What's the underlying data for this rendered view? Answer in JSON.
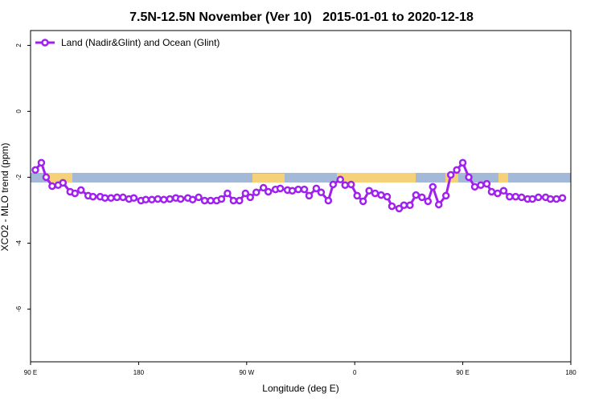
{
  "chart_data": {
    "type": "line",
    "title": "7.5N-12.5N November (Ver 10)   2015-01-01 to 2020-12-18",
    "x_label": "Longitude (deg E)",
    "y_label": "XCO2 - MLO trend (ppm)",
    "xlim": [
      90,
      540
    ],
    "ylim": [
      -7.6,
      2.45
    ],
    "xticks": [
      {
        "value": 90,
        "label": "90 E"
      },
      {
        "value": 180,
        "label": "180"
      },
      {
        "value": 270,
        "label": "90 W"
      },
      {
        "value": 360,
        "label": "0"
      },
      {
        "value": 450,
        "label": "90 E"
      },
      {
        "value": 540,
        "label": "180"
      }
    ],
    "yticks": [
      2,
      0,
      -2,
      -4,
      -6
    ],
    "legend": "top-left",
    "x": [
      94,
      99,
      103,
      108,
      113,
      117,
      123,
      127,
      132,
      138,
      142,
      148,
      152,
      157,
      162,
      167,
      172,
      176,
      182,
      186,
      191,
      196,
      201,
      206,
      211,
      215,
      221,
      225,
      230,
      235,
      240,
      245,
      249,
      254,
      259,
      264,
      269,
      273,
      278,
      284,
      288,
      294,
      298,
      304,
      308,
      313,
      318,
      322,
      328,
      332,
      338,
      342,
      348,
      352,
      357,
      362,
      367,
      372,
      377,
      382,
      387,
      391,
      397,
      401,
      406,
      411,
      416,
      421,
      425,
      430,
      436,
      440,
      445,
      450,
      455,
      460,
      465,
      470,
      474,
      479,
      484,
      489,
      494,
      499,
      504,
      508,
      513,
      519,
      523,
      528,
      533
    ],
    "series": [
      {
        "name": "Land (Nadir&Glint) and Ocean (Glint)",
        "color": "#a020f0",
        "values": [
          -1.78,
          -1.56,
          -2.0,
          -2.27,
          -2.24,
          -2.17,
          -2.44,
          -2.49,
          -2.39,
          -2.56,
          -2.59,
          -2.59,
          -2.63,
          -2.63,
          -2.61,
          -2.61,
          -2.66,
          -2.63,
          -2.71,
          -2.68,
          -2.68,
          -2.66,
          -2.68,
          -2.66,
          -2.63,
          -2.66,
          -2.63,
          -2.68,
          -2.61,
          -2.71,
          -2.71,
          -2.71,
          -2.66,
          -2.49,
          -2.71,
          -2.71,
          -2.49,
          -2.61,
          -2.46,
          -2.32,
          -2.44,
          -2.37,
          -2.34,
          -2.39,
          -2.41,
          -2.37,
          -2.37,
          -2.56,
          -2.34,
          -2.46,
          -2.71,
          -2.22,
          -2.07,
          -2.24,
          -2.22,
          -2.56,
          -2.73,
          -2.41,
          -2.49,
          -2.54,
          -2.59,
          -2.88,
          -2.95,
          -2.85,
          -2.85,
          -2.54,
          -2.61,
          -2.73,
          -2.29,
          -2.83,
          -2.56,
          -1.93,
          -1.78,
          -1.56,
          -2.0,
          -2.29,
          -2.24,
          -2.2,
          -2.44,
          -2.49,
          -2.41,
          -2.59,
          -2.59,
          -2.61,
          -2.66,
          -2.66,
          -2.61,
          -2.61,
          -2.66,
          -2.66,
          -2.63
        ]
      }
    ]
  }
}
